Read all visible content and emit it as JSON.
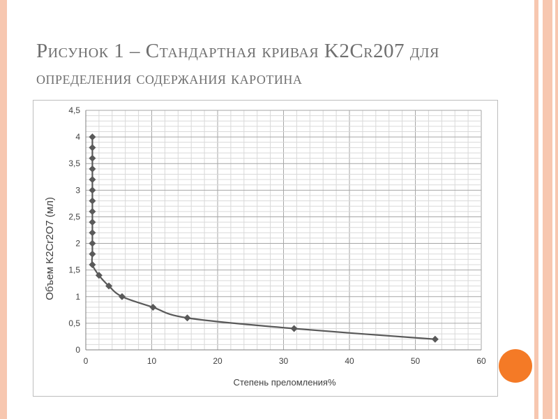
{
  "slide": {
    "title_line1": "Рисунок 1 – Стандартная кривая K2Cr207 для",
    "title_line2": "определения содержания каротина"
  },
  "colors": {
    "border": "#f7c7b0",
    "accent": "#f47a26",
    "title": "#6f6f6f",
    "series": "#595959",
    "grid": "#bfbfbf"
  },
  "chart_data": {
    "type": "line",
    "title": "",
    "xlabel": "Степень преломления%",
    "ylabel": "Объем K2Cr2O7 (мл)",
    "xlim": [
      0,
      60
    ],
    "ylim": [
      0,
      4.5
    ],
    "xticks": [
      0,
      10,
      20,
      30,
      40,
      50,
      60
    ],
    "yticks": [
      0,
      0.5,
      1,
      1.5,
      2,
      2.5,
      3,
      3.5,
      4,
      4.5
    ],
    "xtick_labels": [
      "0",
      "10",
      "20",
      "30",
      "40",
      "50",
      "60"
    ],
    "ytick_labels": [
      "0",
      "0,5",
      "1",
      "1,5",
      "2",
      "2,5",
      "3",
      "3,5",
      "4",
      "4,5"
    ],
    "grid": true,
    "marker": "diamond",
    "series": [
      {
        "x": [
          1,
          1,
          1,
          1,
          1,
          1,
          1,
          1,
          1,
          1,
          1,
          1,
          1,
          2,
          3.5,
          5.5,
          10.2,
          15.4,
          31.6,
          53
        ],
        "y": [
          4,
          3.8,
          3.6,
          3.4,
          3.2,
          3,
          2.8,
          2.6,
          2.4,
          2.2,
          2,
          1.8,
          1.6,
          1.4,
          1.2,
          1,
          0.8,
          0.6,
          0.4,
          0.2
        ]
      }
    ]
  }
}
